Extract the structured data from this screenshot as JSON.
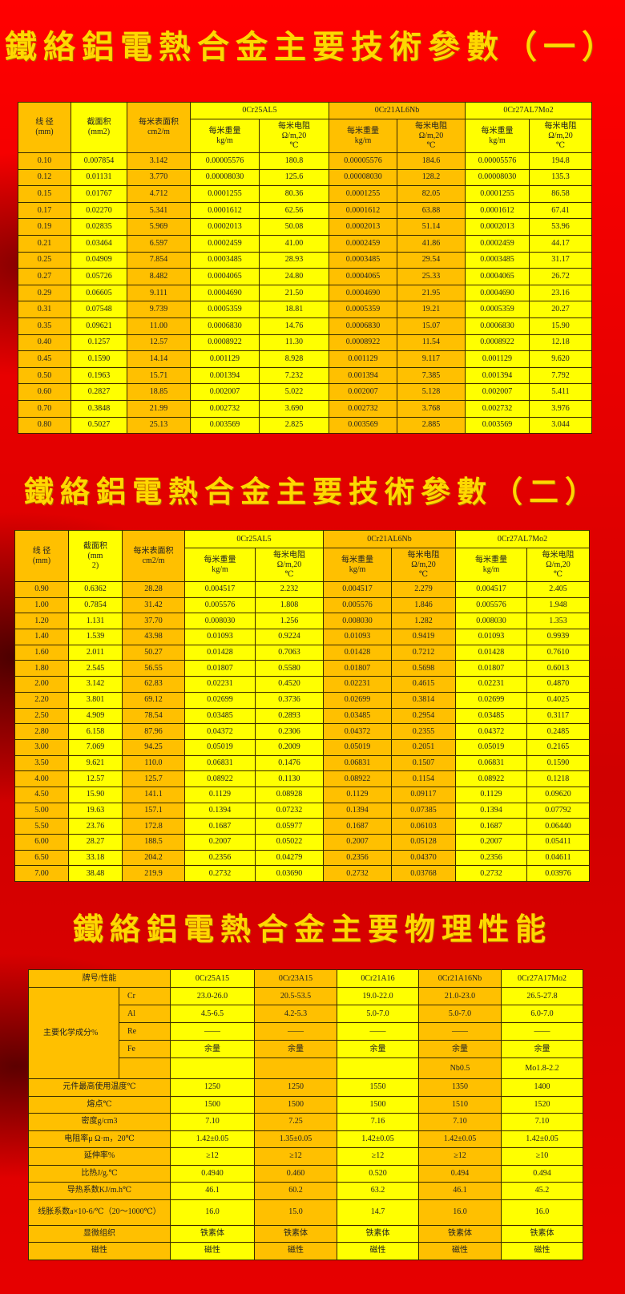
{
  "titles": [
    "鐵絡鋁電熱合金主要技術參數（一）",
    "鐵絡鋁電熱合金主要技術參數（二）",
    "鐵絡鋁電熱合金主要物理性能"
  ],
  "colors": {
    "orange": "#ffc000",
    "yellow": "#ffff00",
    "title": "#ffd800",
    "background": "#e00000"
  },
  "param_tables": [
    {
      "headers": {
        "diameter": "线 径\n(mm)",
        "area": "截面积\n(mm2)",
        "surface": "每米表面积\ncm2/m",
        "alloys": [
          "0Cr25AL5",
          "0Cr21AL6Nb",
          "0Cr27AL7Mo2"
        ],
        "weight": "每米重量\nkg/m",
        "resistance": "每米电阻\nΩ/m,20\n℃"
      },
      "rows": [
        [
          "0.10",
          "0.007854",
          "3.142",
          "0.00005576",
          "180.8",
          "0.00005576",
          "184.6",
          "0.00005576",
          "194.8"
        ],
        [
          "0.12",
          "0.01131",
          "3.770",
          "0.00008030",
          "125.6",
          "0.00008030",
          "128.2",
          "0.00008030",
          "135.3"
        ],
        [
          "0.15",
          "0.01767",
          "4.712",
          "0.0001255",
          "80.36",
          "0.0001255",
          "82.05",
          "0.0001255",
          "86.58"
        ],
        [
          "0.17",
          "0.02270",
          "5.341",
          "0.0001612",
          "62.56",
          "0.0001612",
          "63.88",
          "0.0001612",
          "67.41"
        ],
        [
          "0.19",
          "0.02835",
          "5.969",
          "0.0002013",
          "50.08",
          "0.0002013",
          "51.14",
          "0.0002013",
          "53.96"
        ],
        [
          "0.21",
          "0.03464",
          "6.597",
          "0.0002459",
          "41.00",
          "0.0002459",
          "41.86",
          "0.0002459",
          "44.17"
        ],
        [
          "0.25",
          "0.04909",
          "7.854",
          "0.0003485",
          "28.93",
          "0.0003485",
          "29.54",
          "0.0003485",
          "31.17"
        ],
        [
          "0.27",
          "0.05726",
          "8.482",
          "0.0004065",
          "24.80",
          "0.0004065",
          "25.33",
          "0.0004065",
          "26.72"
        ],
        [
          "0.29",
          "0.06605",
          "9.111",
          "0.0004690",
          "21.50",
          "0.0004690",
          "21.95",
          "0.0004690",
          "23.16"
        ],
        [
          "0.31",
          "0.07548",
          "9.739",
          "0.0005359",
          "18.81",
          "0.0005359",
          "19.21",
          "0.0005359",
          "20.27"
        ],
        [
          "0.35",
          "0.09621",
          "11.00",
          "0.0006830",
          "14.76",
          "0.0006830",
          "15.07",
          "0.0006830",
          "15.90"
        ],
        [
          "0.40",
          "0.1257",
          "12.57",
          "0.0008922",
          "11.30",
          "0.0008922",
          "11.54",
          "0.0008922",
          "12.18"
        ],
        [
          "0.45",
          "0.1590",
          "14.14",
          "0.001129",
          "8.928",
          "0.001129",
          "9.117",
          "0.001129",
          "9.620"
        ],
        [
          "0.50",
          "0.1963",
          "15.71",
          "0.001394",
          "7.232",
          "0.001394",
          "7.385",
          "0.001394",
          "7.792"
        ],
        [
          "0.60",
          "0.2827",
          "18.85",
          "0.002007",
          "5.022",
          "0.002007",
          "5.128",
          "0.002007",
          "5.411"
        ],
        [
          "0.70",
          "0.3848",
          "21.99",
          "0.002732",
          "3.690",
          "0.002732",
          "3.768",
          "0.002732",
          "3.976"
        ],
        [
          "0.80",
          "0.5027",
          "25.13",
          "0.003569",
          "2.825",
          "0.003569",
          "2.885",
          "0.003569",
          "3.044"
        ]
      ]
    },
    {
      "headers": {
        "diameter": "线 径\n(mm)",
        "area": "截面积\n(mm\n2)",
        "surface": "每米表面积\ncm2/m",
        "alloys": [
          "0Cr25AL5",
          "0Cr21AL6Nb",
          "0Cr27AL7Mo2"
        ],
        "weight": "每米重量\nkg/m",
        "resistance": "每米电阻\nΩ/m,20\n℃"
      },
      "rows": [
        [
          "0.90",
          "0.6362",
          "28.28",
          "0.004517",
          "2.232",
          "0.004517",
          "2.279",
          "0.004517",
          "2.405"
        ],
        [
          "1.00",
          "0.7854",
          "31.42",
          "0.005576",
          "1.808",
          "0.005576",
          "1.846",
          "0.005576",
          "1.948"
        ],
        [
          "1.20",
          "1.131",
          "37.70",
          "0.008030",
          "1.256",
          "0.008030",
          "1.282",
          "0.008030",
          "1.353"
        ],
        [
          "1.40",
          "1.539",
          "43.98",
          "0.01093",
          "0.9224",
          "0.01093",
          "0.9419",
          "0.01093",
          "0.9939"
        ],
        [
          "1.60",
          "2.011",
          "50.27",
          "0.01428",
          "0.7063",
          "0.01428",
          "0.7212",
          "0.01428",
          "0.7610"
        ],
        [
          "1.80",
          "2.545",
          "56.55",
          "0.01807",
          "0.5580",
          "0.01807",
          "0.5698",
          "0.01807",
          "0.6013"
        ],
        [
          "2.00",
          "3.142",
          "62.83",
          "0.02231",
          "0.4520",
          "0.02231",
          "0.4615",
          "0.02231",
          "0.4870"
        ],
        [
          "2.20",
          "3.801",
          "69.12",
          "0.02699",
          "0.3736",
          "0.02699",
          "0.3814",
          "0.02699",
          "0.4025"
        ],
        [
          "2.50",
          "4.909",
          "78.54",
          "0.03485",
          "0.2893",
          "0.03485",
          "0.2954",
          "0.03485",
          "0.3117"
        ],
        [
          "2.80",
          "6.158",
          "87.96",
          "0.04372",
          "0.2306",
          "0.04372",
          "0.2355",
          "0.04372",
          "0.2485"
        ],
        [
          "3.00",
          "7.069",
          "94.25",
          "0.05019",
          "0.2009",
          "0.05019",
          "0.2051",
          "0.05019",
          "0.2165"
        ],
        [
          "3.50",
          "9.621",
          "110.0",
          "0.06831",
          "0.1476",
          "0.06831",
          "0.1507",
          "0.06831",
          "0.1590"
        ],
        [
          "4.00",
          "12.57",
          "125.7",
          "0.08922",
          "0.1130",
          "0.08922",
          "0.1154",
          "0.08922",
          "0.1218"
        ],
        [
          "4.50",
          "15.90",
          "141.1",
          "0.1129",
          "0.08928",
          "0.1129",
          "0.09117",
          "0.1129",
          "0.09620"
        ],
        [
          "5.00",
          "19.63",
          "157.1",
          "0.1394",
          "0.07232",
          "0.1394",
          "0.07385",
          "0.1394",
          "0.07792"
        ],
        [
          "5.50",
          "23.76",
          "172.8",
          "0.1687",
          "0.05977",
          "0.1687",
          "0.06103",
          "0.1687",
          "0.06440"
        ],
        [
          "6.00",
          "28.27",
          "188.5",
          "0.2007",
          "0.05022",
          "0.2007",
          "0.05128",
          "0.2007",
          "0.05411"
        ],
        [
          "6.50",
          "33.18",
          "204.2",
          "0.2356",
          "0.04279",
          "0.2356",
          "0.04370",
          "0.2356",
          "0.04611"
        ],
        [
          "7.00",
          "38.48",
          "219.9",
          "0.2732",
          "0.03690",
          "0.2732",
          "0.03768",
          "0.2732",
          "0.03976"
        ]
      ]
    }
  ],
  "physical_table": {
    "header_label": "牌号/性能",
    "grades": [
      "0Cr25A15",
      "0Cr23A15",
      "0Cr21A16",
      "0Cr21A16Nb",
      "0Cr27A17Mo2"
    ],
    "composition_label": "主要化学成分%",
    "composition": [
      {
        "element": "Cr",
        "values": [
          "23.0-26.0",
          "20.5-53.5",
          "19.0-22.0",
          "21.0-23.0",
          "26.5-27.8"
        ]
      },
      {
        "element": "Al",
        "values": [
          "4.5-6.5",
          "4.2-5.3",
          "5.0-7.0",
          "5.0-7.0",
          "6.0-7.0"
        ]
      },
      {
        "element": "Re",
        "values": [
          "——",
          "——",
          "——",
          "——",
          "——"
        ]
      },
      {
        "element": "Fe",
        "values": [
          "余量",
          "余量",
          "余量",
          "余量",
          "余量"
        ]
      },
      {
        "element": "",
        "values": [
          "",
          "",
          "",
          "Nb0.5",
          "Mo1.8-2.2"
        ]
      }
    ],
    "properties": [
      {
        "label": "元件最高使用温度℃",
        "values": [
          "1250",
          "1250",
          "1550",
          "1350",
          "1400"
        ]
      },
      {
        "label": "熔点℃",
        "values": [
          "1500",
          "1500",
          "1500",
          "1510",
          "1520"
        ]
      },
      {
        "label": "密度g/cm3",
        "values": [
          "7.10",
          "7.25",
          "7.16",
          "7.10",
          "7.10"
        ]
      },
      {
        "label": "电阻率μ Ω·m，20℃",
        "values": [
          "1.42±0.05",
          "1.35±0.05",
          "1.42±0.05",
          "1.42±0.05",
          "1.42±0.05"
        ]
      },
      {
        "label": "延伸率%",
        "values": [
          "≥12",
          "≥12",
          "≥12",
          "≥12",
          "≥10"
        ]
      },
      {
        "label": "比热J/g.℃",
        "values": [
          "0.4940",
          "0.460",
          "0.520",
          "0.494",
          "0.494"
        ]
      },
      {
        "label": "导热系数KJ/m.h℃",
        "values": [
          "46.1",
          "60.2",
          "63.2",
          "46.1",
          "45.2"
        ]
      },
      {
        "label": "线胀系数a×10-6/℃（20～1000℃）",
        "values": [
          "16.0",
          "15.0",
          "14.7",
          "16.0",
          "16.0"
        ]
      },
      {
        "label": "显微组织",
        "values": [
          "铁素体",
          "铁素体",
          "铁素体",
          "铁素体",
          "铁素体"
        ]
      },
      {
        "label": "磁性",
        "values": [
          "磁性",
          "磁性",
          "磁性",
          "磁性",
          "磁性"
        ]
      }
    ]
  }
}
